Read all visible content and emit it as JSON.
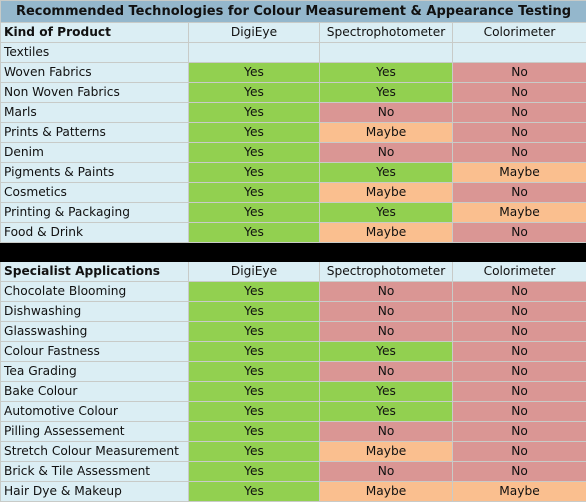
{
  "title": "Recommended Technologies for Colour Measurement & Appearance Testing",
  "colors": {
    "yes": "#92d050",
    "no": "#da9694",
    "maybe": "#fabf8f",
    "label_bg": "#dbeef4",
    "title_bg": "#94b7cc"
  },
  "sections": [
    {
      "header": {
        "label": "Kind of Product",
        "columns": [
          "DigiEye",
          "Spectrophotometer",
          "Colorimeter"
        ]
      },
      "subheader": "Textiles",
      "rows": [
        {
          "label": "Woven Fabrics",
          "values": [
            "Yes",
            "Yes",
            "No"
          ]
        },
        {
          "label": "Non Woven Fabrics",
          "values": [
            "Yes",
            "Yes",
            "No"
          ]
        },
        {
          "label": "Marls",
          "values": [
            "Yes",
            "No",
            "No"
          ]
        },
        {
          "label": "Prints & Patterns",
          "values": [
            "Yes",
            "Maybe",
            "No"
          ]
        },
        {
          "label": "Denim",
          "values": [
            "Yes",
            "No",
            "No"
          ]
        },
        {
          "label": "Pigments & Paints",
          "values": [
            "Yes",
            "Yes",
            "Maybe"
          ]
        },
        {
          "label": "Cosmetics",
          "values": [
            "Yes",
            "Maybe",
            "No"
          ]
        },
        {
          "label": "Printing & Packaging",
          "values": [
            "Yes",
            "Yes",
            "Maybe"
          ]
        },
        {
          "label": "Food & Drink",
          "values": [
            "Yes",
            "Maybe",
            "No"
          ]
        }
      ]
    },
    {
      "header": {
        "label": "Specialist Applications",
        "columns": [
          "DigiEye",
          "Spectrophotometer",
          "Colorimeter"
        ]
      },
      "rows": [
        {
          "label": "Chocolate Blooming",
          "values": [
            "Yes",
            "No",
            "No"
          ]
        },
        {
          "label": "Dishwashing",
          "values": [
            "Yes",
            "No",
            "No"
          ]
        },
        {
          "label": "Glasswashing",
          "values": [
            "Yes",
            "No",
            "No"
          ]
        },
        {
          "label": "Colour Fastness",
          "values": [
            "Yes",
            "Yes",
            "No"
          ]
        },
        {
          "label": "Tea Grading",
          "values": [
            "Yes",
            "No",
            "No"
          ]
        },
        {
          "label": "Bake Colour",
          "values": [
            "Yes",
            "Yes",
            "No"
          ]
        },
        {
          "label": "Automotive Colour",
          "values": [
            "Yes",
            "Yes",
            "No"
          ]
        },
        {
          "label": "Pilling Assessement",
          "values": [
            "Yes",
            "No",
            "No"
          ]
        },
        {
          "label": "Stretch Colour Measurement",
          "values": [
            "Yes",
            "Maybe",
            "No"
          ]
        },
        {
          "label": "Brick & Tile Assessment",
          "values": [
            "Yes",
            "No",
            "No"
          ]
        },
        {
          "label": "Hair Dye & Makeup",
          "values": [
            "Yes",
            "Maybe",
            "Maybe"
          ]
        }
      ]
    }
  ]
}
